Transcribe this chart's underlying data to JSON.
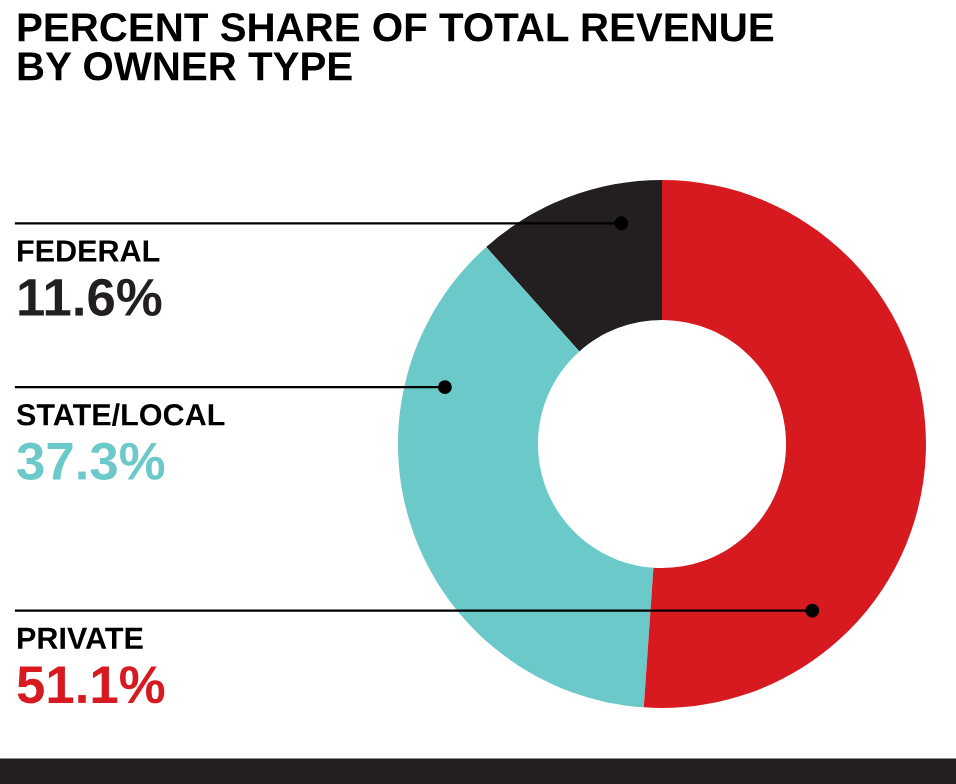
{
  "chart_data": {
    "type": "donut",
    "title": "PERCENT SHARE OF TOTAL REVENUE\nBY OWNER TYPE",
    "categories": [
      "FEDERAL",
      "STATE/LOCAL",
      "PRIVATE"
    ],
    "values": [
      11.6,
      37.3,
      51.1
    ],
    "colors": [
      "#231f20",
      "#6cc9c9",
      "#d71920"
    ],
    "value_labels": [
      "11.6%",
      "37.3%",
      "51.1%"
    ],
    "legend": false
  }
}
